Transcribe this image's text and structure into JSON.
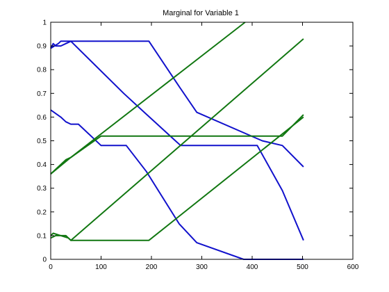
{
  "chart_data": {
    "type": "line",
    "title": "Marginal for Variable 1",
    "xlabel": "",
    "ylabel": "",
    "xlim": [
      0,
      600
    ],
    "ylim": [
      0,
      1
    ],
    "xticks": [
      0,
      100,
      200,
      300,
      400,
      500,
      600
    ],
    "yticks": [
      0,
      0.1,
      0.2,
      0.3,
      0.4,
      0.5,
      0.6,
      0.7,
      0.8,
      0.9,
      1
    ],
    "xtick_labels": [
      "0",
      "100",
      "200",
      "300",
      "400",
      "500",
      "600"
    ],
    "ytick_labels": [
      "0",
      "0.1",
      "0.2",
      "0.3",
      "0.4",
      "0.5",
      "0.6",
      "0.7",
      "0.8",
      "0.9",
      "1"
    ],
    "grid": false,
    "legend": "none",
    "colors": {
      "blue": "#1111cc",
      "green": "#117711"
    },
    "series": [
      {
        "color": "blue",
        "x": [
          0,
          5,
          10,
          20,
          30,
          40,
          195,
          258,
          290,
          420,
          460,
          502
        ],
        "y": [
          0.89,
          0.91,
          0.9,
          0.9,
          0.91,
          0.92,
          0.92,
          0.72,
          0.62,
          0.5,
          0.48,
          0.39
        ]
      },
      {
        "color": "blue",
        "x": [
          0,
          20,
          30,
          40,
          55,
          100,
          150,
          190,
          255,
          290,
          383,
          502
        ],
        "y": [
          0.63,
          0.6,
          0.58,
          0.57,
          0.57,
          0.48,
          0.48,
          0.37,
          0.15,
          0.07,
          0.0,
          0.0
        ]
      },
      {
        "color": "blue",
        "x": [
          0,
          15,
          20,
          40,
          145,
          186,
          258,
          290,
          410,
          460,
          502
        ],
        "y": [
          0.89,
          0.91,
          0.92,
          0.92,
          0.7,
          0.62,
          0.48,
          0.48,
          0.48,
          0.29,
          0.08
        ]
      },
      {
        "color": "green",
        "x": [
          0,
          10,
          30,
          40,
          386
        ],
        "y": [
          0.36,
          0.38,
          0.42,
          0.43,
          1.0
        ]
      },
      {
        "color": "green",
        "x": [
          0,
          40,
          100,
          150,
          260,
          300,
          410,
          460,
          502
        ],
        "y": [
          0.36,
          0.43,
          0.52,
          0.52,
          0.52,
          0.52,
          0.52,
          0.52,
          0.61
        ]
      },
      {
        "color": "green",
        "x": [
          0,
          5,
          20,
          35,
          40,
          195,
          502
        ],
        "y": [
          0.1,
          0.11,
          0.1,
          0.09,
          0.08,
          0.08,
          0.6
        ]
      },
      {
        "color": "green",
        "x": [
          0,
          10,
          30,
          40,
          502
        ],
        "y": [
          0.09,
          0.1,
          0.1,
          0.08,
          0.93
        ]
      }
    ]
  }
}
